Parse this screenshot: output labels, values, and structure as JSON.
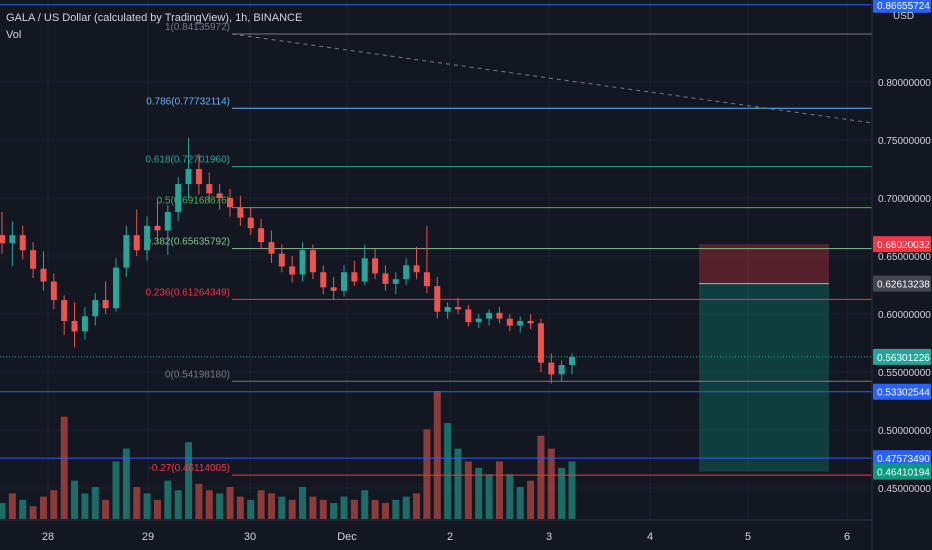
{
  "header": {
    "title": "GALA / US Dollar (calculated by TradingView), 1h, BINANCE",
    "indicator": "Vol",
    "currency": "USD"
  },
  "colors": {
    "background": "#131722",
    "grid": "#1e222d",
    "up": "#26a69a",
    "down": "#ef5350",
    "vol_up": "#1a6e67",
    "vol_down": "#8c3a3a",
    "blue_line": "#2962ff",
    "red_line": "#f23645",
    "text": "#b2b5be",
    "axis_text": "#d1d4dc"
  },
  "chart_data": {
    "type": "candlestick",
    "title": "GALA / US Dollar (calculated by TradingView), 1h, BINANCE",
    "xlabel": "",
    "ylabel": "",
    "x_ticks": [
      "28",
      "29",
      "30",
      "Dec",
      "2",
      "3",
      "4",
      "5",
      "6"
    ],
    "y_ticks": [
      "0.80000000",
      "0.75000000",
      "0.70000000",
      "0.65000000",
      "0.60000000",
      "0.55000000",
      "0.50000000",
      "0.45000000"
    ],
    "ylim": [
      0.425,
      0.87
    ],
    "grid": true,
    "candles_sampled": [
      {
        "o": 0.668,
        "h": 0.688,
        "l": 0.652,
        "c": 0.661
      },
      {
        "o": 0.661,
        "h": 0.68,
        "l": 0.641,
        "c": 0.668
      },
      {
        "o": 0.668,
        "h": 0.676,
        "l": 0.647,
        "c": 0.655
      },
      {
        "o": 0.655,
        "h": 0.662,
        "l": 0.631,
        "c": 0.639
      },
      {
        "o": 0.639,
        "h": 0.654,
        "l": 0.62,
        "c": 0.628
      },
      {
        "o": 0.628,
        "h": 0.635,
        "l": 0.604,
        "c": 0.612
      },
      {
        "o": 0.612,
        "h": 0.616,
        "l": 0.582,
        "c": 0.594
      },
      {
        "o": 0.594,
        "h": 0.61,
        "l": 0.571,
        "c": 0.585
      },
      {
        "o": 0.585,
        "h": 0.606,
        "l": 0.578,
        "c": 0.598
      },
      {
        "o": 0.598,
        "h": 0.618,
        "l": 0.59,
        "c": 0.612
      },
      {
        "o": 0.612,
        "h": 0.628,
        "l": 0.6,
        "c": 0.605
      },
      {
        "o": 0.605,
        "h": 0.648,
        "l": 0.602,
        "c": 0.64
      },
      {
        "o": 0.64,
        "h": 0.676,
        "l": 0.632,
        "c": 0.668
      },
      {
        "o": 0.668,
        "h": 0.69,
        "l": 0.65,
        "c": 0.655
      },
      {
        "o": 0.655,
        "h": 0.684,
        "l": 0.646,
        "c": 0.676
      },
      {
        "o": 0.676,
        "h": 0.698,
        "l": 0.664,
        "c": 0.672
      },
      {
        "o": 0.672,
        "h": 0.694,
        "l": 0.651,
        "c": 0.688
      },
      {
        "o": 0.688,
        "h": 0.718,
        "l": 0.68,
        "c": 0.712
      },
      {
        "o": 0.712,
        "h": 0.752,
        "l": 0.7,
        "c": 0.725
      },
      {
        "o": 0.725,
        "h": 0.738,
        "l": 0.703,
        "c": 0.712
      },
      {
        "o": 0.712,
        "h": 0.722,
        "l": 0.696,
        "c": 0.704
      },
      {
        "o": 0.704,
        "h": 0.712,
        "l": 0.69,
        "c": 0.7
      },
      {
        "o": 0.7,
        "h": 0.708,
        "l": 0.684,
        "c": 0.692
      },
      {
        "o": 0.692,
        "h": 0.702,
        "l": 0.676,
        "c": 0.683
      },
      {
        "o": 0.683,
        "h": 0.692,
        "l": 0.668,
        "c": 0.674
      },
      {
        "o": 0.674,
        "h": 0.682,
        "l": 0.656,
        "c": 0.662
      },
      {
        "o": 0.662,
        "h": 0.672,
        "l": 0.644,
        "c": 0.652
      },
      {
        "o": 0.652,
        "h": 0.66,
        "l": 0.636,
        "c": 0.641
      },
      {
        "o": 0.641,
        "h": 0.65,
        "l": 0.627,
        "c": 0.634
      },
      {
        "o": 0.634,
        "h": 0.662,
        "l": 0.628,
        "c": 0.655
      },
      {
        "o": 0.655,
        "h": 0.66,
        "l": 0.63,
        "c": 0.636
      },
      {
        "o": 0.636,
        "h": 0.642,
        "l": 0.617,
        "c": 0.623
      },
      {
        "o": 0.623,
        "h": 0.632,
        "l": 0.612,
        "c": 0.62
      },
      {
        "o": 0.62,
        "h": 0.642,
        "l": 0.615,
        "c": 0.636
      },
      {
        "o": 0.636,
        "h": 0.646,
        "l": 0.624,
        "c": 0.628
      },
      {
        "o": 0.628,
        "h": 0.66,
        "l": 0.625,
        "c": 0.648
      },
      {
        "o": 0.648,
        "h": 0.656,
        "l": 0.63,
        "c": 0.635
      },
      {
        "o": 0.635,
        "h": 0.642,
        "l": 0.62,
        "c": 0.626
      },
      {
        "o": 0.626,
        "h": 0.636,
        "l": 0.617,
        "c": 0.63
      },
      {
        "o": 0.63,
        "h": 0.648,
        "l": 0.625,
        "c": 0.642
      },
      {
        "o": 0.642,
        "h": 0.658,
        "l": 0.63,
        "c": 0.636
      },
      {
        "o": 0.636,
        "h": 0.676,
        "l": 0.618,
        "c": 0.624
      },
      {
        "o": 0.624,
        "h": 0.632,
        "l": 0.596,
        "c": 0.602
      },
      {
        "o": 0.602,
        "h": 0.61,
        "l": 0.596,
        "c": 0.606
      },
      {
        "o": 0.606,
        "h": 0.614,
        "l": 0.6,
        "c": 0.604
      },
      {
        "o": 0.604,
        "h": 0.608,
        "l": 0.589,
        "c": 0.593
      },
      {
        "o": 0.593,
        "h": 0.6,
        "l": 0.588,
        "c": 0.596
      },
      {
        "o": 0.596,
        "h": 0.604,
        "l": 0.59,
        "c": 0.601
      },
      {
        "o": 0.601,
        "h": 0.606,
        "l": 0.592,
        "c": 0.596
      },
      {
        "o": 0.596,
        "h": 0.6,
        "l": 0.585,
        "c": 0.59
      },
      {
        "o": 0.59,
        "h": 0.598,
        "l": 0.584,
        "c": 0.594
      },
      {
        "o": 0.594,
        "h": 0.6,
        "l": 0.587,
        "c": 0.592
      },
      {
        "o": 0.592,
        "h": 0.596,
        "l": 0.55,
        "c": 0.558
      },
      {
        "o": 0.558,
        "h": 0.566,
        "l": 0.54,
        "c": 0.548
      },
      {
        "o": 0.548,
        "h": 0.56,
        "l": 0.542,
        "c": 0.556
      },
      {
        "o": 0.556,
        "h": 0.566,
        "l": 0.548,
        "c": 0.563
      }
    ],
    "volume_sampled": [
      {
        "v": 5,
        "up": true
      },
      {
        "v": 8,
        "up": false
      },
      {
        "v": 6,
        "up": true
      },
      {
        "v": 4,
        "up": false
      },
      {
        "v": 7,
        "up": false
      },
      {
        "v": 9,
        "up": false
      },
      {
        "v": 32,
        "up": false
      },
      {
        "v": 12,
        "up": true
      },
      {
        "v": 8,
        "up": true
      },
      {
        "v": 10,
        "up": true
      },
      {
        "v": 6,
        "up": false
      },
      {
        "v": 18,
        "up": true
      },
      {
        "v": 22,
        "up": true
      },
      {
        "v": 10,
        "up": false
      },
      {
        "v": 8,
        "up": true
      },
      {
        "v": 6,
        "up": false
      },
      {
        "v": 12,
        "up": true
      },
      {
        "v": 9,
        "up": true
      },
      {
        "v": 24,
        "up": true
      },
      {
        "v": 11,
        "up": false
      },
      {
        "v": 9,
        "up": false
      },
      {
        "v": 8,
        "up": true
      },
      {
        "v": 10,
        "up": false
      },
      {
        "v": 7,
        "up": false
      },
      {
        "v": 6,
        "up": true
      },
      {
        "v": 9,
        "up": false
      },
      {
        "v": 8,
        "up": false
      },
      {
        "v": 7,
        "up": true
      },
      {
        "v": 6,
        "up": false
      },
      {
        "v": 10,
        "up": true
      },
      {
        "v": 7,
        "up": false
      },
      {
        "v": 6,
        "up": false
      },
      {
        "v": 5,
        "up": true
      },
      {
        "v": 7,
        "up": true
      },
      {
        "v": 6,
        "up": false
      },
      {
        "v": 9,
        "up": true
      },
      {
        "v": 6,
        "up": false
      },
      {
        "v": 5,
        "up": false
      },
      {
        "v": 6,
        "up": true
      },
      {
        "v": 7,
        "up": true
      },
      {
        "v": 8,
        "up": false
      },
      {
        "v": 28,
        "up": false
      },
      {
        "v": 40,
        "up": false
      },
      {
        "v": 30,
        "up": true
      },
      {
        "v": 22,
        "up": true
      },
      {
        "v": 18,
        "up": false
      },
      {
        "v": 16,
        "up": true
      },
      {
        "v": 14,
        "up": true
      },
      {
        "v": 18,
        "up": false
      },
      {
        "v": 14,
        "up": true
      },
      {
        "v": 10,
        "up": true
      },
      {
        "v": 12,
        "up": false
      },
      {
        "v": 26,
        "up": false
      },
      {
        "v": 22,
        "up": false
      },
      {
        "v": 16,
        "up": true
      },
      {
        "v": 18,
        "up": true
      }
    ],
    "fib_levels": [
      {
        "label": "1(0.84135972)",
        "price": 0.84135972,
        "color": "#787b86"
      },
      {
        "label": "0.786(0.77732114)",
        "price": 0.77732114,
        "color": "#64b5f6"
      },
      {
        "label": "0.618(0.72701960)",
        "price": 0.7270196,
        "color": "#26a69a"
      },
      {
        "label": "0.5(0.69168876)",
        "price": 0.69168876,
        "color": "#4caf50"
      },
      {
        "label": "0.382(0.65635792)",
        "price": 0.65635792,
        "color": "#81c784"
      },
      {
        "label": "0.236(0.61264349)",
        "price": 0.61264349,
        "color": "#f23645"
      },
      {
        "label": "0(0.54198180)",
        "price": 0.5419818,
        "color": "#787b86"
      },
      {
        "label": "-0.27(0.46114005)",
        "price": 0.46114005,
        "color": "#f23645"
      }
    ],
    "horizontal_lines": [
      {
        "price": 0.86655724,
        "color": "#2962ff",
        "badge": "0.86655724"
      },
      {
        "price": 0.53302544,
        "color": "#2962ff",
        "badge": "0.53302544"
      },
      {
        "price": 0.4757349,
        "color": "#2962ff",
        "badge": "0.47573490"
      }
    ],
    "trend_line": {
      "from": {
        "x": "29 20:00",
        "price": 0.84135972
      },
      "to": {
        "x": "6 00:00",
        "price": 0.765
      },
      "style": "dashed"
    },
    "position": {
      "type": "short",
      "entry": 0.62613238,
      "stop": 0.66020032,
      "target": 0.46410194,
      "entry_badge": "0.62613238",
      "stop_badge": "0.66020032",
      "target_badge": "0.46410194"
    },
    "last_price": {
      "value": 0.56301226,
      "badge": "0.56301226"
    }
  }
}
